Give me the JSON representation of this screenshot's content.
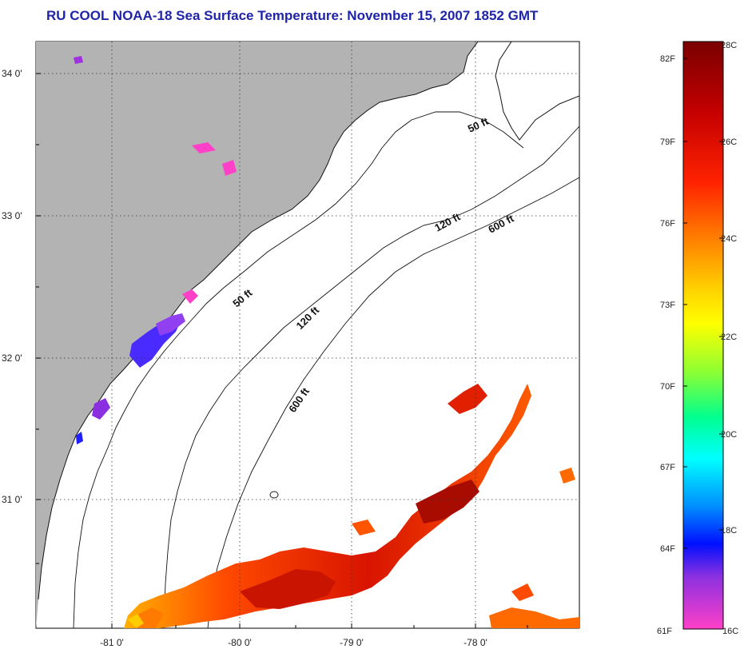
{
  "title": "RU COOL  NOAA-18  Sea Surface Temperature:  November 15, 2007 1852 GMT",
  "map": {
    "lon_labels": [
      "-81 0'",
      "-80 0'",
      "-79 0'",
      "-78 0'"
    ],
    "lat_labels": [
      "34 0'",
      "33 0'",
      "32 0'",
      "31 0'"
    ],
    "depth_labels": [
      "50 ft",
      "120 ft",
      "600 ft",
      "50 ft",
      "120 ft",
      "600 ft"
    ],
    "land_color": "#b3b3b3",
    "water_color": "#ffffff"
  },
  "colorbar": {
    "fahrenheit_labels": [
      "82F",
      "79F",
      "76F",
      "73F",
      "70F",
      "67F",
      "64F",
      "61F"
    ],
    "celsius_labels": [
      "28C",
      "26C",
      "24C",
      "22C",
      "20C",
      "18C",
      "16C"
    ],
    "colors": [
      "#7a0000",
      "#c40000",
      "#ff2a00",
      "#ff7a00",
      "#ffd400",
      "#ffff00",
      "#90ff30",
      "#00ff90",
      "#00ffff",
      "#0090ff",
      "#0020ff",
      "#8a30e0",
      "#ff40c8"
    ]
  }
}
